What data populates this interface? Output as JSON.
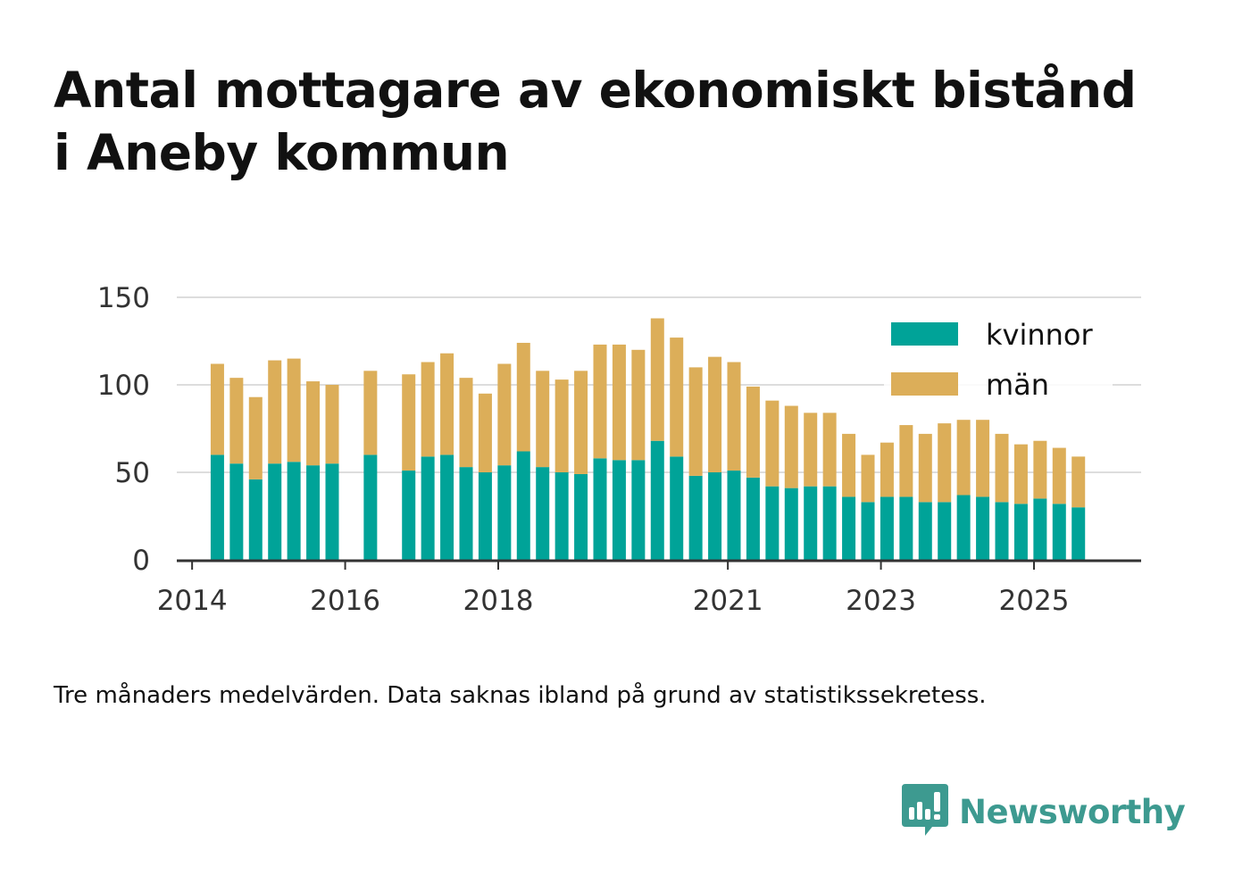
{
  "title_lines": [
    "Antal mottagare av ekonomiskt bistånd",
    "i Aneby kommun"
  ],
  "footnote": "Tre månaders medelvärden. Data saknas ibland på grund av statistikssekretess.",
  "brand": {
    "name": "Newsworthy",
    "icon": "newsworthy-bar-chart-icon"
  },
  "colors": {
    "kvinnor": "#00a398",
    "man": "#dcae59",
    "grid": "#dddddd",
    "axis": "#333333"
  },
  "chart_data": {
    "type": "bar",
    "stacked": true,
    "title": "Antal mottagare av ekonomiskt bistånd i Aneby kommun",
    "x_unit": "year",
    "xlim": [
      2013.8,
      2026.4
    ],
    "ylim": [
      0,
      150
    ],
    "yticks": [
      0,
      50,
      100,
      150
    ],
    "xticks": [
      2014,
      2016,
      2018,
      2021,
      2023,
      2025
    ],
    "grid": true,
    "legend_position": "top-right",
    "x": [
      2014.33,
      2014.58,
      2014.83,
      2015.08,
      2015.33,
      2015.58,
      2015.83,
      2016.33,
      2016.83,
      2017.08,
      2017.33,
      2017.58,
      2017.83,
      2018.08,
      2018.33,
      2018.58,
      2018.83,
      2019.08,
      2019.33,
      2019.58,
      2019.83,
      2020.08,
      2020.33,
      2020.58,
      2020.83,
      2021.08,
      2021.33,
      2021.58,
      2021.83,
      2022.08,
      2022.33,
      2022.58,
      2022.83,
      2023.08,
      2023.33,
      2023.58,
      2023.83,
      2024.08,
      2024.33,
      2024.58,
      2024.83,
      2025.08,
      2025.33,
      2025.58
    ],
    "series": [
      {
        "name": "kvinnor",
        "values": [
          60,
          55,
          46,
          55,
          56,
          54,
          55,
          60,
          51,
          59,
          60,
          53,
          50,
          54,
          62,
          53,
          50,
          49,
          58,
          57,
          57,
          68,
          59,
          48,
          50,
          51,
          47,
          42,
          41,
          42,
          42,
          36,
          33,
          36,
          36,
          33,
          33,
          37,
          36,
          33,
          32,
          35,
          32,
          30
        ]
      },
      {
        "name": "män",
        "values": [
          52,
          49,
          47,
          59,
          59,
          48,
          45,
          48,
          55,
          54,
          58,
          51,
          45,
          58,
          62,
          55,
          53,
          59,
          65,
          66,
          63,
          70,
          68,
          62,
          66,
          62,
          52,
          49,
          47,
          42,
          42,
          36,
          27,
          31,
          41,
          39,
          45,
          43,
          44,
          39,
          34,
          33,
          32,
          29
        ]
      }
    ],
    "legend": [
      "kvinnor",
      "män"
    ]
  }
}
